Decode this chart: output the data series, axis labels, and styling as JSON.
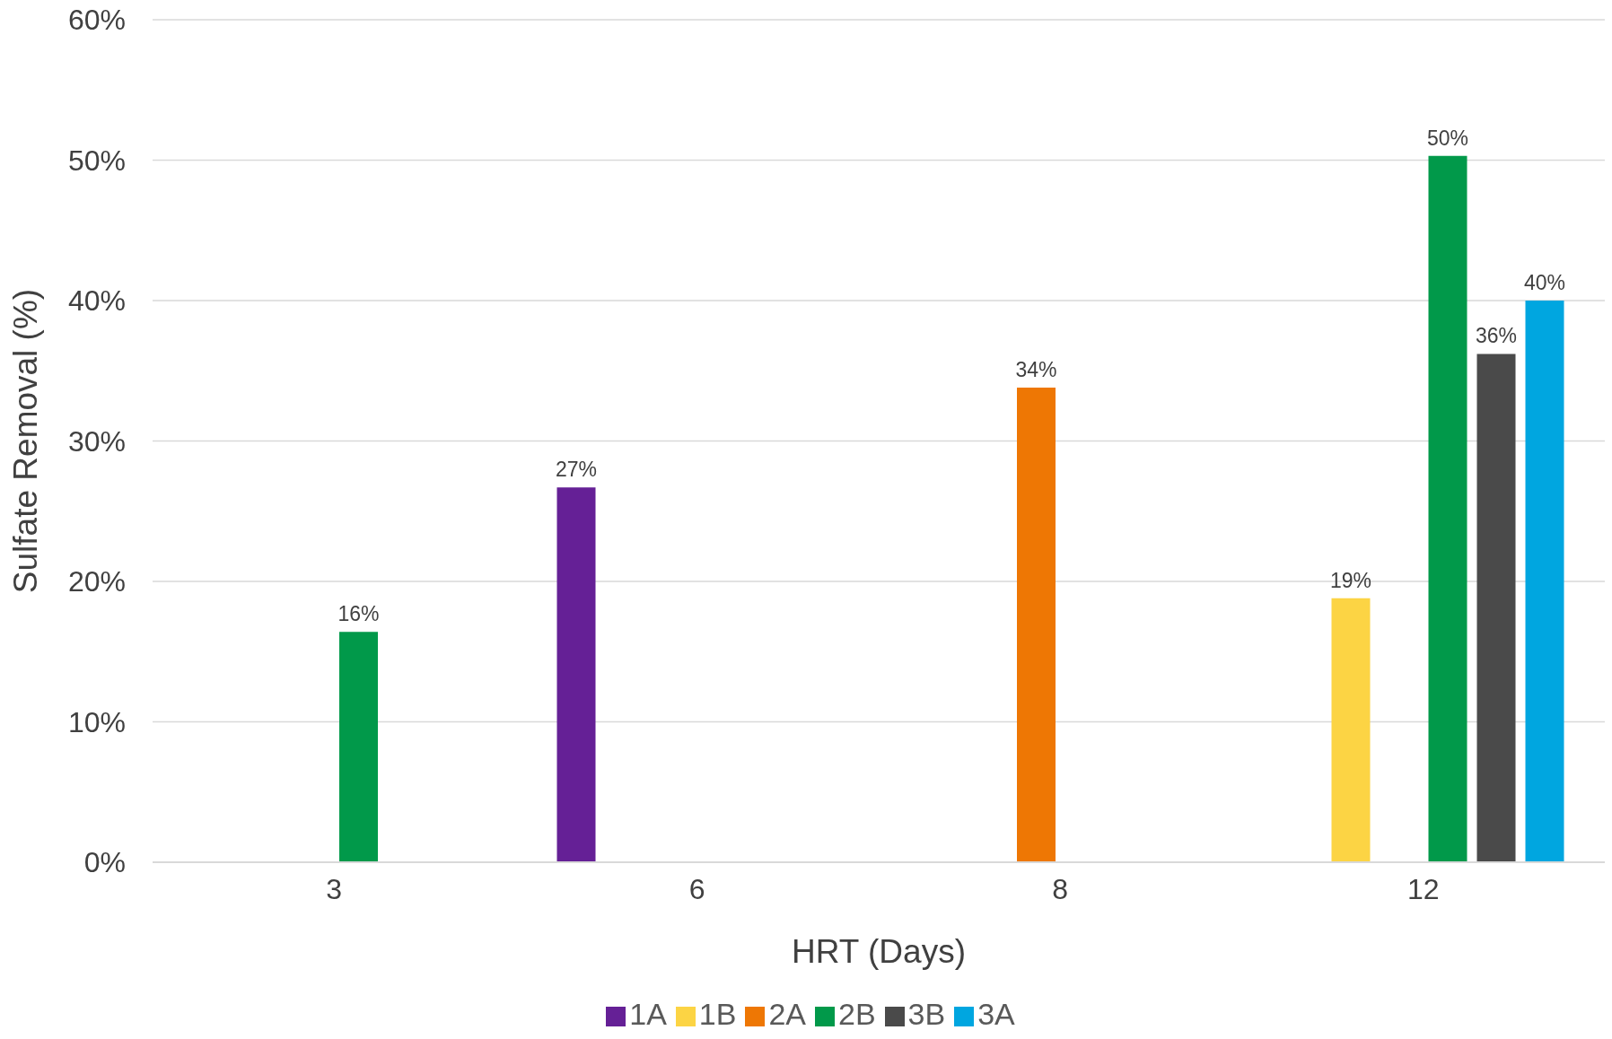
{
  "chart_data": {
    "type": "bar",
    "xlabel": "HRT (Days)",
    "ylabel": "Sulfate Removal (%)",
    "categories": [
      "3",
      "6",
      "8",
      "12"
    ],
    "series": [
      {
        "name": "1A",
        "color": "#652096",
        "values": [
          null,
          26.7,
          null,
          null
        ],
        "value_labels": [
          null,
          "27%",
          null,
          null
        ]
      },
      {
        "name": "1B",
        "color": "#fcd444",
        "values": [
          null,
          null,
          null,
          18.8
        ],
        "value_labels": [
          null,
          null,
          null,
          "19%"
        ]
      },
      {
        "name": "2A",
        "color": "#ee7704",
        "values": [
          null,
          null,
          33.8,
          null
        ],
        "value_labels": [
          null,
          null,
          "34%",
          null
        ]
      },
      {
        "name": "2B",
        "color": "#01994a",
        "values": [
          16.4,
          null,
          null,
          50.3
        ],
        "value_labels": [
          "16%",
          null,
          null,
          "50%"
        ]
      },
      {
        "name": "3B",
        "color": "#4a4a4a",
        "values": [
          null,
          null,
          null,
          36.2
        ],
        "value_labels": [
          null,
          null,
          null,
          "36%"
        ]
      },
      {
        "name": "3A",
        "color": "#00a6e0",
        "values": [
          null,
          null,
          null,
          40.0
        ],
        "value_labels": [
          null,
          null,
          null,
          "40%"
        ]
      }
    ],
    "ylim": [
      0,
      60
    ],
    "yticks": [
      {
        "value": 0,
        "label": "0%"
      },
      {
        "value": 10,
        "label": "10%"
      },
      {
        "value": 20,
        "label": "20%"
      },
      {
        "value": 30,
        "label": "30%"
      },
      {
        "value": 40,
        "label": "40%"
      },
      {
        "value": 50,
        "label": "50%"
      },
      {
        "value": 60,
        "label": "60%"
      }
    ],
    "grid": "y",
    "legend": "bottom"
  }
}
